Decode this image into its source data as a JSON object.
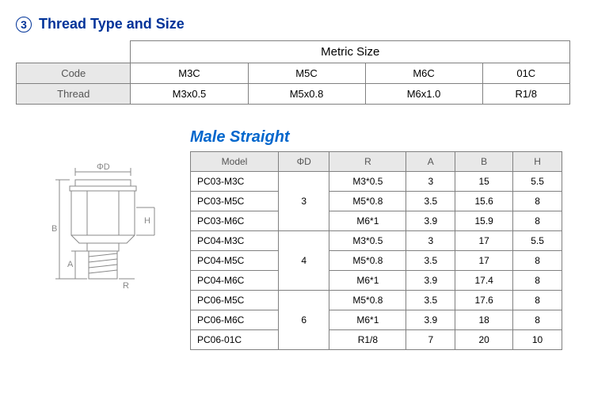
{
  "section": {
    "number": "3",
    "title": "Thread Type and Size"
  },
  "thread_table": {
    "metric_header": "Metric Size",
    "row_headers": [
      "Code",
      "Thread"
    ],
    "columns": [
      "M3C",
      "M5C",
      "M6C",
      "01C"
    ],
    "thread_row": [
      "M3x0.5",
      "M5x0.8",
      "M6x1.0",
      "R1/8"
    ]
  },
  "male_straight": {
    "title": "Male Straight",
    "headers": [
      "Model",
      "ΦD",
      "R",
      "A",
      "B",
      "H"
    ],
    "groups": [
      {
        "phiD": "3",
        "rows": [
          {
            "model": "PC03-M3C",
            "R": "M3*0.5",
            "A": "3",
            "B": "15",
            "H": "5.5"
          },
          {
            "model": "PC03-M5C",
            "R": "M5*0.8",
            "A": "3.5",
            "B": "15.6",
            "H": "8"
          },
          {
            "model": "PC03-M6C",
            "R": "M6*1",
            "A": "3.9",
            "B": "15.9",
            "H": "8"
          }
        ]
      },
      {
        "phiD": "4",
        "rows": [
          {
            "model": "PC04-M3C",
            "R": "M3*0.5",
            "A": "3",
            "B": "17",
            "H": "5.5"
          },
          {
            "model": "PC04-M5C",
            "R": "M5*0.8",
            "A": "3.5",
            "B": "17",
            "H": "8"
          },
          {
            "model": "PC04-M6C",
            "R": "M6*1",
            "A": "3.9",
            "B": "17.4",
            "H": "8"
          }
        ]
      },
      {
        "phiD": "6",
        "rows": [
          {
            "model": "PC06-M5C",
            "R": "M5*0.8",
            "A": "3.5",
            "B": "17.6",
            "H": "8"
          },
          {
            "model": "PC06-M6C",
            "R": "M6*1",
            "A": "3.9",
            "B": "18",
            "H": "8"
          },
          {
            "model": "PC06-01C",
            "R": "R1/8",
            "A": "7",
            "B": "20",
            "H": "10"
          }
        ]
      }
    ]
  },
  "diagram_labels": {
    "phiD": "ΦD",
    "H": "H",
    "B": "B",
    "A": "A",
    "R": "R"
  }
}
